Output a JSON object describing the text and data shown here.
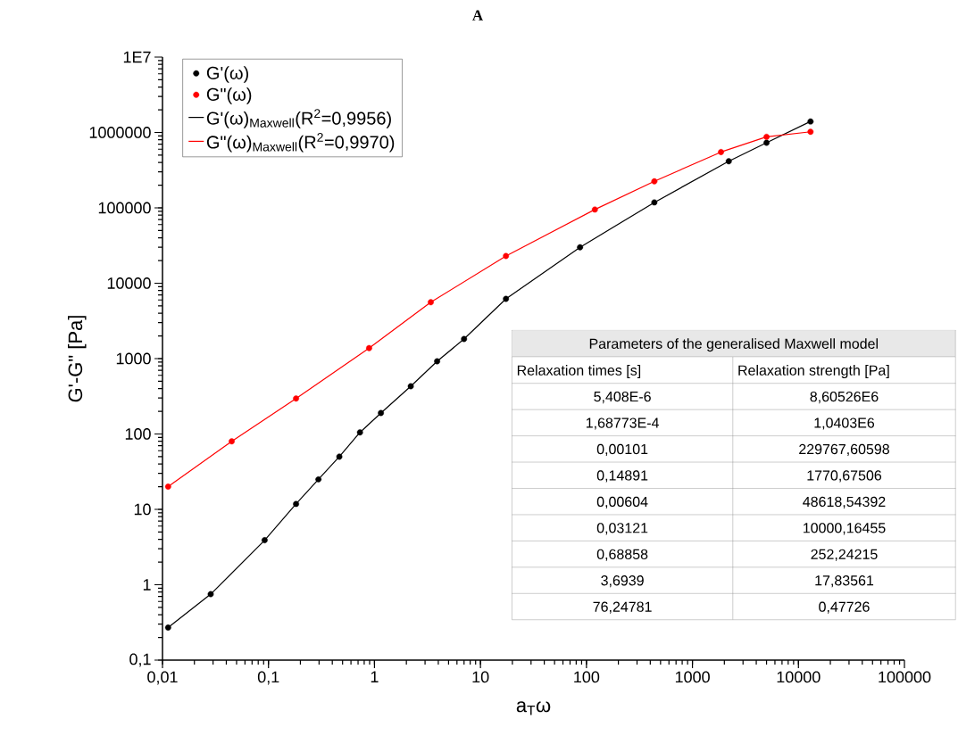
{
  "chart_data": {
    "type": "scatter",
    "title": "A",
    "xlabel": "a$_{T}$ω",
    "ylabel": "G'-G\" [Pa]",
    "log": "xy",
    "legend": "top left",
    "grid": false,
    "xlim": [
      0.01,
      100000
    ],
    "ylim": [
      0.1,
      10000000
    ],
    "xticks": [
      {
        "value": 0.01,
        "label": "0,01"
      },
      {
        "value": 0.1,
        "label": "0,1"
      },
      1,
      10,
      100,
      1000,
      10000,
      100000
    ],
    "yticks": [
      {
        "value": 0.1,
        "label": "0,1"
      },
      1,
      10,
      100,
      1000,
      10000,
      100000,
      1000000,
      {
        "value": 10000000,
        "label": "1E7"
      }
    ],
    "series": [
      {
        "name": "G'(ω)",
        "marker": "circle",
        "color": "#000000",
        "x": [
          0.0113,
          0.0285,
          0.092,
          0.182,
          0.296,
          0.466,
          0.73,
          1.15,
          2.2,
          3.9,
          7.0,
          17.4,
          87,
          437,
          2200,
          5000,
          13000
        ],
        "values": [
          0.27,
          0.75,
          3.9,
          11.8,
          25,
          50,
          105,
          190,
          430,
          920,
          1820,
          6200,
          30000,
          118000,
          415000,
          730000,
          1400000
        ]
      },
      {
        "name": "G\"(ω)",
        "marker": "circle",
        "color": "#ff0000",
        "x": [
          0.0113,
          0.045,
          0.182,
          0.89,
          3.4,
          17.4,
          120,
          437,
          1860,
          5000,
          13000
        ],
        "values": [
          20,
          80,
          296,
          1380,
          5600,
          23000,
          95000,
          225000,
          550000,
          875000,
          1020000
        ]
      },
      {
        "name": "G'(ω)$_{Maxwell}$(R$^{2}$=0,9956)",
        "type": "line",
        "marker": "none",
        "color": "#000000",
        "x": [
          0.0113,
          0.0285,
          0.092,
          0.182,
          0.296,
          0.466,
          0.73,
          1.15,
          2.2,
          3.9,
          7.0,
          17.4,
          87,
          437,
          2200,
          5000,
          13000
        ],
        "values": [
          0.27,
          0.75,
          3.9,
          11.8,
          25,
          50,
          105,
          190,
          430,
          920,
          1820,
          6200,
          30000,
          118000,
          415000,
          730000,
          1400000
        ]
      },
      {
        "name": "G\"(ω)$_{Maxwell}$(R$^{2}$=0,9970)",
        "type": "line",
        "marker": "none",
        "color": "#ff0000",
        "x": [
          0.0113,
          0.045,
          0.182,
          0.89,
          3.4,
          17.4,
          120,
          437,
          1860,
          5000,
          13000
        ],
        "values": [
          20,
          80,
          296,
          1380,
          5600,
          23000,
          95000,
          225000,
          550000,
          875000,
          1020000
        ]
      }
    ],
    "annotations": [
      "Parameters of the generalised Maxwell model",
      "Relaxation times [s]",
      "Relaxation strength  [Pa]",
      "5,408E-6",
      "8,60526E6",
      "1,68773E-4",
      "1,0403E6",
      "0,00101",
      "229767,60598",
      "0,14891",
      "1770,67506",
      "0,00604",
      "48618,54392",
      "0,03121",
      "10000,16455",
      "0,68858",
      "252,24215",
      "3,6939",
      "17,83561",
      "76,24781",
      "0,47726"
    ]
  }
}
